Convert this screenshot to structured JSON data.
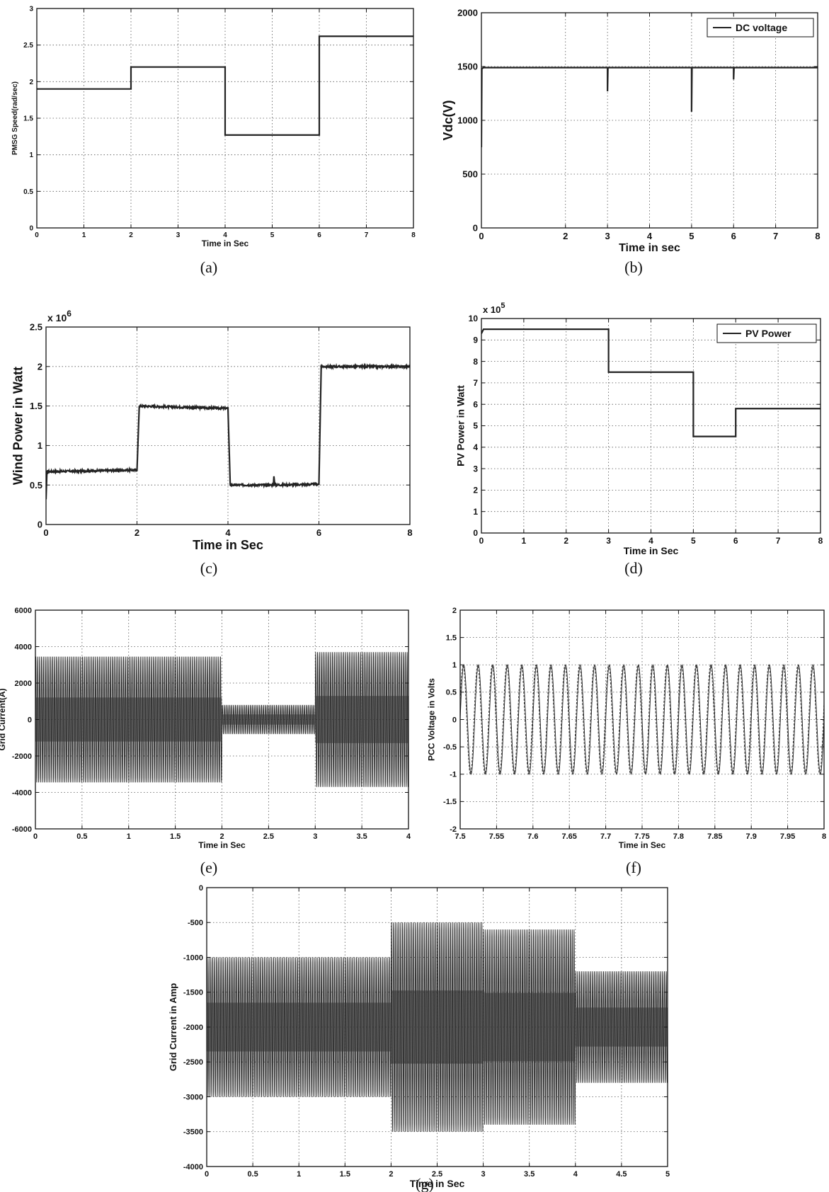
{
  "chart_data": [
    {
      "id": "a",
      "type": "line",
      "caption": "(a)",
      "xlabel": "Time in Sec",
      "ylabel": "PMSG Speed(rad/sec)",
      "xlim": [
        0,
        8
      ],
      "ylim": [
        0,
        3
      ],
      "xticks": [
        "0",
        "1",
        "2",
        "3",
        "4",
        "5",
        "6",
        "7",
        "8"
      ],
      "yticks": [
        "0",
        "0.5",
        "1",
        "1.5",
        "2",
        "2.5",
        "3"
      ],
      "grid": true,
      "series": [
        {
          "style": "step",
          "x": [
            0,
            2,
            2,
            4,
            4,
            6,
            6,
            8
          ],
          "y": [
            1.9,
            1.9,
            2.2,
            2.2,
            1.27,
            1.27,
            2.62,
            2.62
          ]
        }
      ]
    },
    {
      "id": "b",
      "type": "line",
      "caption": "(b)",
      "xlabel": "Time in sec",
      "ylabel": "Vdc(V)",
      "xlim": [
        0,
        8
      ],
      "ylim": [
        0,
        2000
      ],
      "xticks": [
        "0",
        "2",
        "3",
        "4",
        "5",
        "6",
        "7",
        "8"
      ],
      "xtick_values": [
        0,
        2,
        3,
        4,
        5,
        6,
        7,
        8
      ],
      "yticks": [
        "0",
        "500",
        "1000",
        "1500",
        "2000"
      ],
      "grid": true,
      "legend": {
        "position": "top-right",
        "entries": [
          "DC voltage"
        ]
      },
      "series": [
        {
          "name": "DC voltage",
          "x": [
            0,
            0.01,
            0.05,
            3,
            3,
            3.01,
            5,
            5,
            5.01,
            6,
            6,
            6.01,
            8
          ],
          "y": [
            750,
            1480,
            1490,
            1490,
            1270,
            1490,
            1490,
            1080,
            1490,
            1490,
            1380,
            1490,
            1490
          ]
        }
      ]
    },
    {
      "id": "c",
      "type": "line",
      "caption": "(c)",
      "xlabel": "Time in Sec",
      "ylabel": "Wind Power in Watt",
      "multiplier": "x 10",
      "multiplier_exp": "6",
      "xlim": [
        0,
        8
      ],
      "ylim": [
        0,
        2.5
      ],
      "xticks": [
        "0",
        "2",
        "4",
        "6",
        "8"
      ],
      "yticks": [
        "0",
        "0.5",
        "1",
        "1.5",
        "2",
        "2.5"
      ],
      "grid": true,
      "series": [
        {
          "style": "noisy-step",
          "noise": 0.012,
          "x": [
            0,
            0.02,
            2,
            2.05,
            4,
            4.05,
            5,
            5.01,
            5.03,
            6,
            6.05,
            8
          ],
          "y": [
            0.32,
            0.67,
            0.69,
            1.5,
            1.47,
            0.5,
            0.5,
            0.61,
            0.5,
            0.51,
            2.0,
            2.0
          ]
        }
      ]
    },
    {
      "id": "d",
      "type": "line",
      "caption": "(d)",
      "xlabel": "Time in Sec",
      "ylabel": "PV Power in Watt",
      "multiplier": "x 10",
      "multiplier_exp": "5",
      "xlim": [
        0,
        8
      ],
      "ylim": [
        0,
        10
      ],
      "xticks": [
        "0",
        "1",
        "2",
        "3",
        "4",
        "5",
        "6",
        "7",
        "8"
      ],
      "yticks": [
        "0",
        "1",
        "2",
        "3",
        "4",
        "5",
        "6",
        "7",
        "8",
        "9",
        "10"
      ],
      "grid": true,
      "legend": {
        "position": "top-right",
        "entries": [
          "PV Power"
        ]
      },
      "series": [
        {
          "name": "PV Power",
          "style": "step",
          "x": [
            0,
            0.05,
            3,
            3,
            5,
            5,
            6,
            6,
            8
          ],
          "y": [
            9.3,
            9.5,
            9.5,
            7.5,
            7.5,
            4.5,
            4.5,
            5.8,
            5.8
          ]
        }
      ]
    },
    {
      "id": "e",
      "type": "line",
      "caption": "(e)",
      "xlabel": "Time in Sec",
      "ylabel": "Grid Current(A)",
      "xlim": [
        0,
        4
      ],
      "ylim": [
        -6000,
        6000
      ],
      "xticks": [
        "0",
        "0.5",
        "1",
        "1.5",
        "2",
        "2.5",
        "3",
        "3.5",
        "4"
      ],
      "yticks": [
        "-6000",
        "-4000",
        "-2000",
        "0",
        "2000",
        "4000",
        "6000"
      ],
      "grid": true,
      "series": [
        {
          "style": "oscillation",
          "center": 0,
          "cycles_per_unit": 50,
          "envelope": [
            {
              "x": [
                0,
                2
              ],
              "amp": 3450
            },
            {
              "x": [
                2,
                3
              ],
              "amp": 800
            },
            {
              "x": [
                3,
                4
              ],
              "amp": 3700
            }
          ]
        }
      ]
    },
    {
      "id": "f",
      "type": "line",
      "caption": "(f)",
      "xlabel": "Time in Sec",
      "ylabel": "PCC Voltage in Volts",
      "xlim": [
        7.5,
        8
      ],
      "ylim": [
        -2,
        2
      ],
      "xticks": [
        "7.5",
        "7.55",
        "7.6",
        "7.65",
        "7.7",
        "7.75",
        "7.8",
        "7.85",
        "7.9",
        "7.95",
        "8"
      ],
      "yticks": [
        "-2",
        "-1.5",
        "-1",
        "-0.5",
        "0",
        "0.5",
        "1",
        "1.5",
        "2"
      ],
      "grid": true,
      "series": [
        {
          "style": "oscillation",
          "center": 0,
          "cycles_per_unit": 50,
          "phase": 0,
          "envelope": [
            {
              "x": [
                7.5,
                8
              ],
              "amp": 1
            }
          ]
        },
        {
          "style": "oscillation",
          "center": 0,
          "cycles_per_unit": 50,
          "phase": 0.05,
          "dashed": true,
          "envelope": [
            {
              "x": [
                7.5,
                8
              ],
              "amp": 1
            }
          ]
        }
      ]
    },
    {
      "id": "g",
      "type": "line",
      "caption": "(g)",
      "xlabel": "Time in Sec",
      "ylabel": "Grid Current in Amp",
      "xlim": [
        0,
        5
      ],
      "ylim": [
        -4000,
        0
      ],
      "xticks": [
        "0",
        "0.5",
        "1",
        "1.5",
        "2",
        "2.5",
        "3",
        "3.5",
        "4",
        "4.5",
        "5"
      ],
      "yticks": [
        "-4000",
        "-3500",
        "-3000",
        "-2500",
        "-2000",
        "-1500",
        "-1000",
        "-500",
        "0"
      ],
      "grid": true,
      "series": [
        {
          "style": "oscillation",
          "center": -2000,
          "cycles_per_unit": 50,
          "envelope": [
            {
              "x": [
                0,
                2
              ],
              "amp": 1000
            },
            {
              "x": [
                2,
                3
              ],
              "amp": 1500
            },
            {
              "x": [
                3,
                4
              ],
              "amp": 1400
            },
            {
              "x": [
                4,
                5
              ],
              "amp": 800
            }
          ]
        }
      ]
    }
  ]
}
